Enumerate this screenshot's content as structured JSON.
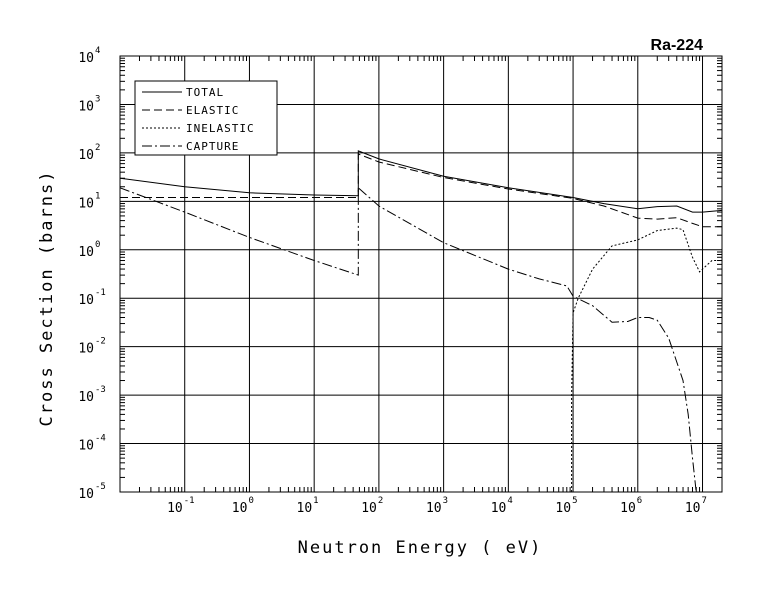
{
  "chart_data": {
    "type": "line",
    "title": "Ra-224",
    "xlabel": "Neutron Energy ( eV)",
    "ylabel": "Cross Section (barns)",
    "xscale": "log",
    "yscale": "log",
    "xlim": [
      0.01,
      20000000
    ],
    "ylim": [
      1e-05,
      10000
    ],
    "grid": true,
    "legend_position": "top-left",
    "x_ticks": [
      {
        "base": "10",
        "exp": "-1",
        "value": 0.1
      },
      {
        "base": "10",
        "exp": "0",
        "value": 1
      },
      {
        "base": "10",
        "exp": "1",
        "value": 10
      },
      {
        "base": "10",
        "exp": "2",
        "value": 100
      },
      {
        "base": "10",
        "exp": "3",
        "value": 1000
      },
      {
        "base": "10",
        "exp": "4",
        "value": 10000
      },
      {
        "base": "10",
        "exp": "5",
        "value": 100000
      },
      {
        "base": "10",
        "exp": "6",
        "value": 1000000
      },
      {
        "base": "10",
        "exp": "7",
        "value": 10000000
      }
    ],
    "y_ticks": [
      {
        "base": "10",
        "exp": "4",
        "value": 10000
      },
      {
        "base": "10",
        "exp": "3",
        "value": 1000
      },
      {
        "base": "10",
        "exp": "2",
        "value": 100
      },
      {
        "base": "10",
        "exp": "1",
        "value": 10
      },
      {
        "base": "10",
        "exp": "0",
        "value": 1
      },
      {
        "base": "10",
        "exp": "-1",
        "value": 0.1
      },
      {
        "base": "10",
        "exp": "-2",
        "value": 0.01
      },
      {
        "base": "10",
        "exp": "-3",
        "value": 0.001
      },
      {
        "base": "10",
        "exp": "-4",
        "value": 0.0001
      },
      {
        "base": "10",
        "exp": "-5",
        "value": 1e-05
      }
    ],
    "series": [
      {
        "name": "TOTAL",
        "dash": "solid",
        "points": [
          [
            0.01,
            30
          ],
          [
            0.1,
            20
          ],
          [
            1,
            15
          ],
          [
            10,
            13.5
          ],
          [
            48,
            13
          ],
          [
            48,
            110
          ],
          [
            100,
            75
          ],
          [
            1000,
            33
          ],
          [
            10000,
            19
          ],
          [
            100000,
            12
          ],
          [
            300000,
            9
          ],
          [
            1000000,
            7
          ],
          [
            2000000,
            7.8
          ],
          [
            4000000,
            8
          ],
          [
            7000000,
            6
          ],
          [
            10000000,
            6
          ],
          [
            20000000,
            6.5
          ]
        ]
      },
      {
        "name": "ELASTIC",
        "dash": "dashed",
        "points": [
          [
            0.01,
            12
          ],
          [
            0.1,
            12
          ],
          [
            1,
            12
          ],
          [
            10,
            12
          ],
          [
            48,
            12
          ],
          [
            48,
            95
          ],
          [
            100,
            65
          ],
          [
            1000,
            31
          ],
          [
            10000,
            18
          ],
          [
            100000,
            11.5
          ],
          [
            300000,
            8
          ],
          [
            1000000,
            4.5
          ],
          [
            2000000,
            4.3
          ],
          [
            4000000,
            4.6
          ],
          [
            7000000,
            3.5
          ],
          [
            10000000,
            3
          ],
          [
            20000000,
            3
          ]
        ]
      },
      {
        "name": "INELASTIC",
        "dash": "dotted",
        "points": [
          [
            95000,
            1e-05
          ],
          [
            95000,
            0.001
          ],
          [
            100000,
            0.05
          ],
          [
            120000,
            0.1
          ],
          [
            200000,
            0.4
          ],
          [
            400000,
            1.2
          ],
          [
            1000000,
            1.6
          ],
          [
            2000000,
            2.5
          ],
          [
            4000000,
            2.8
          ],
          [
            5000000,
            2.6
          ],
          [
            7000000,
            0.7
          ],
          [
            9000000,
            0.35
          ],
          [
            10000000,
            0.4
          ],
          [
            14000000,
            0.6
          ],
          [
            20000000,
            0.6
          ]
        ]
      },
      {
        "name": "CAPTURE",
        "dash": "dashdot",
        "points": [
          [
            0.01,
            19
          ],
          [
            0.1,
            6
          ],
          [
            1,
            1.8
          ],
          [
            10,
            0.6
          ],
          [
            48,
            0.3
          ],
          [
            48,
            19
          ],
          [
            100,
            8
          ],
          [
            1000,
            1.4
          ],
          [
            10000,
            0.4
          ],
          [
            30000,
            0.25
          ],
          [
            80000,
            0.18
          ],
          [
            100000,
            0.11
          ],
          [
            200000,
            0.07
          ],
          [
            400000,
            0.032
          ],
          [
            700000,
            0.033
          ],
          [
            1000000,
            0.04
          ],
          [
            1500000,
            0.04
          ],
          [
            2000000,
            0.035
          ],
          [
            3000000,
            0.015
          ],
          [
            5000000,
            0.002
          ],
          [
            6000000,
            0.0004
          ],
          [
            7000000,
            5e-05
          ],
          [
            8000000,
            1e-05
          ]
        ]
      }
    ]
  }
}
